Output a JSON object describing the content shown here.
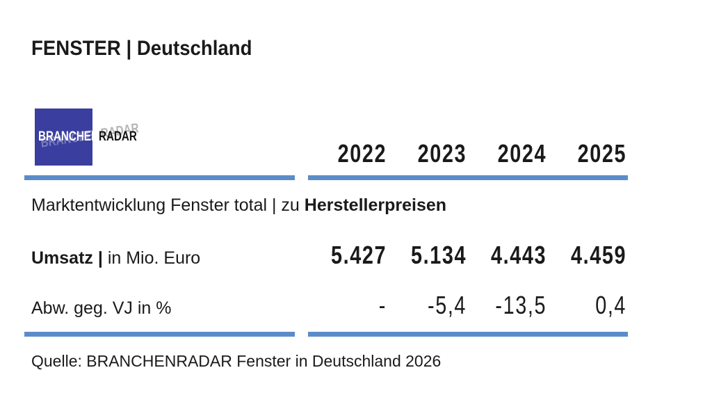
{
  "page": {
    "title": "FENSTER | Deutschland"
  },
  "logo": {
    "part1": "BRANCHEN",
    "part2": "RADAR"
  },
  "table": {
    "years": [
      "2022",
      "2023",
      "2024",
      "2025"
    ],
    "section": {
      "regular": "Marktentwicklung Fenster total | zu ",
      "bold": "Herstellerpreisen"
    },
    "rows": [
      {
        "label_bold": "Umsatz | ",
        "label_regular": "in Mio. Euro",
        "values": [
          "5.427",
          "5.134",
          "4.443",
          "4.459"
        ]
      },
      {
        "label_bold": "",
        "label_regular": "Abw. geg. VJ in %",
        "values": [
          "-",
          "-5,4",
          "-13,5",
          "0,4"
        ]
      }
    ]
  },
  "footer": {
    "source": "Quelle: BRANCHENRADAR Fenster in Deutschland 2026"
  },
  "colors": {
    "accent_blue": "#5b8cc8",
    "logo_blue": "#3a3e9e",
    "text": "#1a1a1a"
  },
  "chart_data": {
    "type": "table",
    "title": "FENSTER | Deutschland — Marktentwicklung Fenster total | zu Herstellerpreisen",
    "columns": [
      "2022",
      "2023",
      "2024",
      "2025"
    ],
    "rows": [
      {
        "label": "Umsatz | in Mio. Euro",
        "values": [
          5427,
          5134,
          4443,
          4459
        ]
      },
      {
        "label": "Abw. geg. VJ in %",
        "values": [
          null,
          -5.4,
          -13.5,
          0.4
        ]
      }
    ],
    "source": "Quelle: BRANCHENRADAR Fenster in Deutschland 2026"
  }
}
